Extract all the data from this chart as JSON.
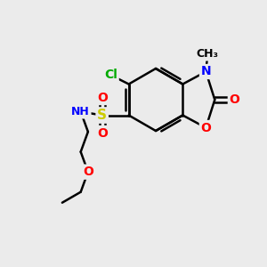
{
  "bg_color": "#EBEBEB",
  "bond_color": "#000000",
  "bond_width": 1.8,
  "atom_colors": {
    "N": "#0000FF",
    "O": "#FF0000",
    "S": "#CCCC00",
    "Cl": "#00AA00",
    "H": "#888888",
    "C": "#000000"
  },
  "font_size": 10,
  "figsize": [
    3.0,
    3.0
  ],
  "dpi": 100
}
